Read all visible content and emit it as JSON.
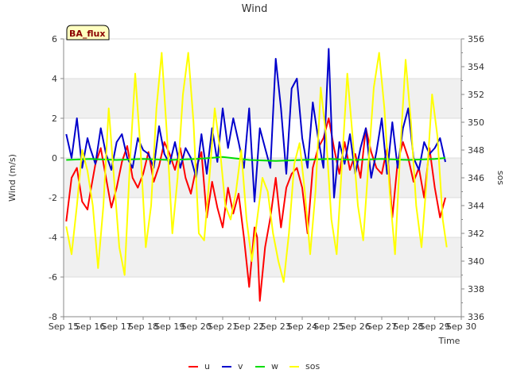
{
  "chart_data": {
    "type": "line",
    "title": "Wind",
    "badge": "BA_flux",
    "xlabel": "Time",
    "ylabel": "Wind (m/s)",
    "y2label": "sos",
    "x_ticks": [
      "Sep 15",
      "Sep 16",
      "Sep 17",
      "Sep 18",
      "Sep 19",
      "Sep 20",
      "Sep 21",
      "Sep 22",
      "Sep 23",
      "Sep 24",
      "Sep 25",
      "Sep 26",
      "Sep 27",
      "Sep 28",
      "Sep 29",
      "Sep 30"
    ],
    "xlim": [
      15,
      30
    ],
    "ylim": [
      -8,
      6
    ],
    "y_ticks": [
      -8,
      -6,
      -4,
      -2,
      0,
      2,
      4,
      6
    ],
    "y2lim": [
      336,
      356
    ],
    "y2_ticks": [
      336,
      338,
      340,
      342,
      344,
      346,
      348,
      350,
      352,
      354,
      356
    ],
    "series": [
      {
        "name": "u",
        "axis": "left",
        "color": "#ff0000",
        "x": [
          15.1,
          15.3,
          15.5,
          15.7,
          15.9,
          16.0,
          16.2,
          16.4,
          16.6,
          16.8,
          17.0,
          17.2,
          17.4,
          17.6,
          17.8,
          18.0,
          18.2,
          18.4,
          18.6,
          18.8,
          19.0,
          19.2,
          19.4,
          19.6,
          19.8,
          20.0,
          20.2,
          20.4,
          20.6,
          20.8,
          21.0,
          21.2,
          21.4,
          21.6,
          21.8,
          22.0,
          22.2,
          22.3,
          22.4,
          22.6,
          22.8,
          23.0,
          23.2,
          23.4,
          23.6,
          23.8,
          24.0,
          24.2,
          24.4,
          24.6,
          24.8,
          25.0,
          25.2,
          25.4,
          25.6,
          25.8,
          26.0,
          26.2,
          26.4,
          26.6,
          26.8,
          27.0,
          27.2,
          27.4,
          27.6,
          27.8,
          28.0,
          28.2,
          28.4,
          28.6,
          28.8,
          29.0,
          29.2,
          29.4
        ],
        "values": [
          -3.2,
          -1.0,
          -0.5,
          -2.2,
          -2.6,
          -1.8,
          -0.3,
          0.5,
          -1.0,
          -2.5,
          -1.5,
          -0.2,
          0.6,
          -1.0,
          -1.5,
          -0.8,
          0.3,
          -1.2,
          -0.4,
          0.8,
          0.2,
          -0.6,
          0.5,
          -1.0,
          -1.8,
          -0.5,
          0.3,
          -3.0,
          -1.2,
          -2.5,
          -3.5,
          -1.5,
          -2.8,
          -1.8,
          -4.0,
          -6.5,
          -3.5,
          -4.0,
          -7.2,
          -4.5,
          -3.0,
          -1.0,
          -3.5,
          -1.5,
          -0.8,
          -0.5,
          -1.5,
          -3.8,
          -0.5,
          0.5,
          1.0,
          2.0,
          0.5,
          -0.8,
          0.8,
          -0.6,
          0.2,
          -1.0,
          1.5,
          0.3,
          -0.5,
          -0.8,
          0.5,
          -3.0,
          -0.2,
          0.8,
          0.0,
          -1.2,
          -0.5,
          -2.0,
          0.5,
          -1.5,
          -3.0,
          -2.0
        ]
      },
      {
        "name": "v",
        "axis": "left",
        "color": "#0000cc",
        "x": [
          15.1,
          15.3,
          15.5,
          15.7,
          15.9,
          16.0,
          16.2,
          16.4,
          16.6,
          16.8,
          17.0,
          17.2,
          17.4,
          17.6,
          17.8,
          18.0,
          18.2,
          18.4,
          18.6,
          18.8,
          19.0,
          19.2,
          19.4,
          19.6,
          19.8,
          20.0,
          20.2,
          20.4,
          20.6,
          20.8,
          21.0,
          21.2,
          21.4,
          21.6,
          21.8,
          22.0,
          22.2,
          22.4,
          22.6,
          22.8,
          23.0,
          23.2,
          23.4,
          23.6,
          23.8,
          24.0,
          24.2,
          24.4,
          24.6,
          24.8,
          25.0,
          25.2,
          25.4,
          25.6,
          25.8,
          26.0,
          26.2,
          26.4,
          26.6,
          26.8,
          27.0,
          27.2,
          27.4,
          27.6,
          27.8,
          28.0,
          28.2,
          28.4,
          28.6,
          28.8,
          29.0,
          29.2,
          29.4
        ],
        "values": [
          1.2,
          0.0,
          2.0,
          -0.5,
          1.0,
          0.5,
          -0.3,
          1.5,
          0.2,
          -0.6,
          0.8,
          1.2,
          0.0,
          -0.5,
          1.0,
          0.4,
          0.2,
          -0.5,
          1.6,
          0.2,
          -0.3,
          0.8,
          -0.5,
          0.5,
          0.0,
          -1.0,
          1.2,
          -0.8,
          1.5,
          -0.2,
          2.5,
          0.5,
          2.0,
          0.8,
          -0.5,
          2.5,
          -2.2,
          1.5,
          0.5,
          -0.5,
          5.0,
          2.5,
          -0.8,
          3.5,
          4.0,
          1.0,
          -0.5,
          2.8,
          1.0,
          -0.5,
          5.5,
          -2.0,
          0.8,
          -0.3,
          1.2,
          -0.8,
          0.5,
          1.5,
          -1.0,
          0.3,
          2.0,
          -0.8,
          1.8,
          -0.5,
          1.5,
          2.5,
          0.0,
          -0.6,
          0.8,
          0.2,
          0.5,
          1.0,
          -0.2
        ]
      },
      {
        "name": "w",
        "axis": "left",
        "color": "#00dd00",
        "x": [
          15.1,
          16.0,
          17.0,
          18.0,
          19.0,
          20.0,
          21.0,
          22.0,
          23.0,
          24.0,
          25.0,
          26.0,
          27.0,
          28.0,
          29.0,
          29.4
        ],
        "values": [
          -0.1,
          -0.05,
          -0.1,
          -0.05,
          -0.1,
          -0.05,
          0.05,
          -0.1,
          -0.15,
          -0.1,
          -0.05,
          -0.1,
          -0.05,
          -0.1,
          -0.05,
          0.0
        ]
      },
      {
        "name": "sos",
        "axis": "right",
        "color": "#ffff00",
        "x": [
          15.1,
          15.3,
          15.5,
          15.7,
          15.9,
          16.1,
          16.3,
          16.5,
          16.7,
          16.9,
          17.1,
          17.3,
          17.5,
          17.7,
          17.9,
          18.1,
          18.3,
          18.5,
          18.7,
          18.9,
          19.1,
          19.3,
          19.5,
          19.7,
          19.9,
          20.1,
          20.3,
          20.5,
          20.7,
          20.9,
          21.1,
          21.3,
          21.5,
          21.7,
          21.9,
          22.1,
          22.3,
          22.5,
          22.7,
          22.9,
          23.1,
          23.3,
          23.5,
          23.7,
          23.9,
          24.1,
          24.3,
          24.5,
          24.7,
          24.9,
          25.1,
          25.3,
          25.5,
          25.7,
          25.9,
          26.1,
          26.3,
          26.5,
          26.7,
          26.9,
          27.1,
          27.3,
          27.5,
          27.7,
          27.9,
          28.1,
          28.3,
          28.5,
          28.7,
          28.9,
          29.1,
          29.3,
          29.45
        ],
        "values": [
          342.5,
          340.5,
          344.0,
          348.0,
          346.5,
          344.0,
          339.5,
          344.0,
          351.0,
          346.0,
          341.0,
          339.0,
          347.0,
          353.5,
          348.0,
          341.0,
          344.0,
          351.0,
          355.0,
          349.0,
          342.0,
          346.0,
          352.0,
          355.0,
          350.0,
          342.0,
          341.5,
          346.0,
          351.0,
          348.0,
          344.0,
          343.0,
          345.0,
          348.0,
          343.0,
          340.0,
          343.0,
          346.0,
          345.0,
          342.0,
          340.0,
          338.5,
          342.0,
          347.0,
          348.5,
          345.0,
          340.5,
          345.0,
          352.5,
          349.0,
          343.0,
          340.5,
          347.0,
          353.5,
          349.0,
          344.0,
          341.5,
          347.0,
          352.5,
          355.0,
          351.0,
          345.0,
          340.5,
          348.0,
          354.5,
          350.0,
          344.0,
          341.0,
          346.0,
          352.0,
          349.0,
          343.0,
          341.0
        ]
      }
    ],
    "legend": [
      "u",
      "v",
      "w",
      "sos"
    ],
    "legend_position": "bottom-center"
  }
}
